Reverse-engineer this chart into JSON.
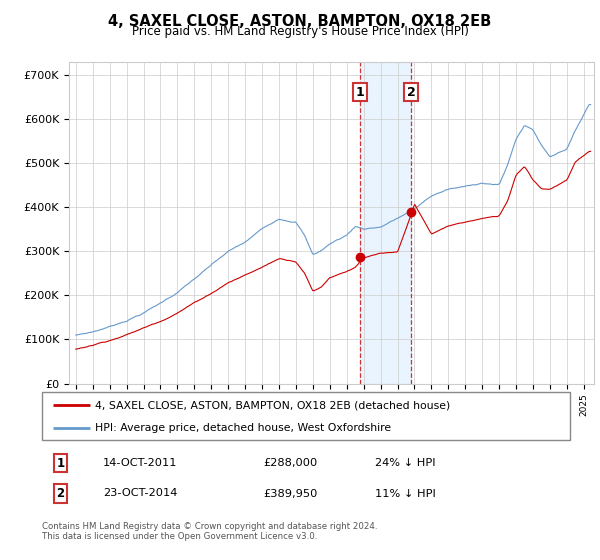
{
  "title": "4, SAXEL CLOSE, ASTON, BAMPTON, OX18 2EB",
  "subtitle": "Price paid vs. HM Land Registry's House Price Index (HPI)",
  "ylabel_ticks": [
    "£0",
    "£100K",
    "£200K",
    "£300K",
    "£400K",
    "£500K",
    "£600K",
    "£700K"
  ],
  "ytick_vals": [
    0,
    100000,
    200000,
    300000,
    400000,
    500000,
    600000,
    700000
  ],
  "ylim": [
    0,
    730000
  ],
  "sale1_price": 288000,
  "sale1_x": 2011.79,
  "sale2_price": 389950,
  "sale2_x": 2014.81,
  "legend_line1": "4, SAXEL CLOSE, ASTON, BAMPTON, OX18 2EB (detached house)",
  "legend_line2": "HPI: Average price, detached house, West Oxfordshire",
  "footnote": "Contains HM Land Registry data © Crown copyright and database right 2024.\nThis data is licensed under the Open Government Licence v3.0.",
  "red_color": "#cc0000",
  "blue_color": "#6699cc",
  "bg_shade": "#ddeeff",
  "hpi_key_x": [
    1995,
    1996,
    1997,
    1998,
    1999,
    2000,
    2001,
    2002,
    2003,
    2004,
    2005,
    2006,
    2007,
    2008,
    2008.5,
    2009,
    2009.5,
    2010,
    2011,
    2011.5,
    2012,
    2013,
    2014,
    2015,
    2016,
    2017,
    2018,
    2019,
    2020,
    2020.5,
    2021,
    2021.5,
    2022,
    2022.5,
    2023,
    2023.5,
    2024,
    2024.5,
    2025.3
  ],
  "hpi_key_y": [
    110000,
    118000,
    130000,
    145000,
    163000,
    185000,
    210000,
    240000,
    270000,
    300000,
    320000,
    350000,
    375000,
    370000,
    340000,
    295000,
    305000,
    320000,
    340000,
    360000,
    355000,
    360000,
    380000,
    400000,
    430000,
    445000,
    450000,
    460000,
    455000,
    500000,
    560000,
    590000,
    580000,
    545000,
    520000,
    530000,
    540000,
    580000,
    640000
  ],
  "red_key_x": [
    1995,
    1996,
    1997,
    1998,
    1999,
    2000,
    2001,
    2002,
    2003,
    2004,
    2005,
    2006,
    2007,
    2008,
    2008.5,
    2009,
    2009.5,
    2010,
    2011,
    2011.5,
    2011.79,
    2012,
    2013,
    2014.0,
    2014.81,
    2015,
    2016,
    2017,
    2018,
    2019,
    2020,
    2020.5,
    2021,
    2021.5,
    2022,
    2022.5,
    2023,
    2023.5,
    2024,
    2024.5,
    2025.3
  ],
  "red_key_y": [
    78000,
    88000,
    100000,
    113000,
    128000,
    145000,
    165000,
    188000,
    210000,
    235000,
    252000,
    270000,
    290000,
    285000,
    260000,
    218000,
    228000,
    250000,
    265000,
    275000,
    288000,
    295000,
    305000,
    305000,
    389950,
    415000,
    345000,
    363000,
    372000,
    380000,
    385000,
    420000,
    480000,
    500000,
    470000,
    450000,
    450000,
    460000,
    470000,
    510000,
    535000
  ]
}
